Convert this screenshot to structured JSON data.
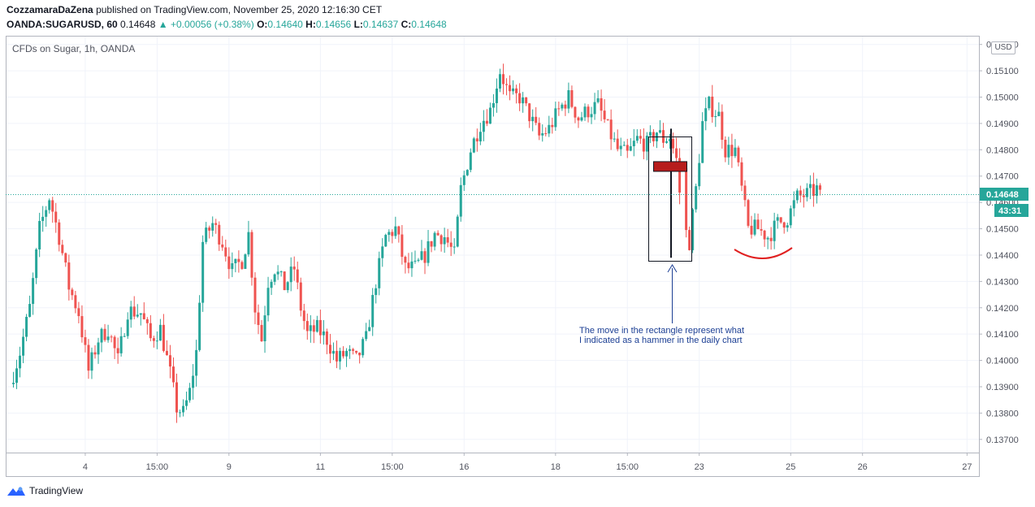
{
  "header": {
    "author": "CozzamaraDaZena",
    "published_text": "published on TradingView.com, November 25, 2020 12:16:30 CET",
    "symbol": "OANDA:SUGARUSD, 60",
    "last": "0.14648",
    "change": "▲ +0.00056 (+0.38%)",
    "o_label": "O:",
    "o_value": "0.14640",
    "h_label": "H:",
    "h_value": "0.14656",
    "l_label": "L:",
    "l_value": "0.14637",
    "c_label": "C:",
    "c_value": "0.14648"
  },
  "legend": {
    "title": "CFDs on Sugar, 1h, OANDA"
  },
  "currency_label": "USD",
  "price_tag": {
    "value": "0.14648",
    "countdown": "43:31"
  },
  "annotation": {
    "line1": "The move in the rectangle represent what",
    "line2": "I indicated as a hammer in the daily chart"
  },
  "footer": {
    "brand": "TradingView"
  },
  "colors": {
    "up": "#26a69a",
    "down": "#ef5350",
    "annotation_text": "#1c3f94",
    "arc": "#e02020",
    "hammer_body": "#b71c1c"
  },
  "chart_data": {
    "type": "candlestick",
    "title": "CFDs on Sugar, 1h, OANDA",
    "ylim": [
      0.1365,
      0.1523
    ],
    "y_ticks": [
      "0.13700",
      "0.13800",
      "0.13900",
      "0.14000",
      "0.14100",
      "0.14200",
      "0.14300",
      "0.14400",
      "0.14500",
      "0.14600",
      "0.14700",
      "0.14800",
      "0.14900",
      "0.15000",
      "0.15100",
      "0.15200"
    ],
    "x_ticks": [
      {
        "label": "4",
        "i": 22
      },
      {
        "label": "15:00",
        "i": 44
      },
      {
        "label": "9",
        "i": 66
      },
      {
        "label": "11",
        "i": 94
      },
      {
        "label": "15:00",
        "i": 116
      },
      {
        "label": "16",
        "i": 138
      },
      {
        "label": "18",
        "i": 166
      },
      {
        "label": "15:00",
        "i": 188
      },
      {
        "label": "23",
        "i": 210
      },
      {
        "label": "25",
        "i": 238
      },
      {
        "label": "26",
        "i": 260
      },
      {
        "label": "27",
        "i": 292
      }
    ],
    "anchors": [
      [
        0,
        0.1391
      ],
      [
        3,
        0.1403
      ],
      [
        6,
        0.142
      ],
      [
        9,
        0.145
      ],
      [
        12,
        0.1462
      ],
      [
        15,
        0.1447
      ],
      [
        18,
        0.1428
      ],
      [
        21,
        0.1418
      ],
      [
        24,
        0.1396
      ],
      [
        27,
        0.1408
      ],
      [
        30,
        0.1412
      ],
      [
        33,
        0.14
      ],
      [
        36,
        0.1419
      ],
      [
        40,
        0.1418
      ],
      [
        43,
        0.1408
      ],
      [
        46,
        0.1412
      ],
      [
        49,
        0.1395
      ],
      [
        51,
        0.1382
      ],
      [
        53,
        0.138
      ],
      [
        55,
        0.1388
      ],
      [
        57,
        0.1403
      ],
      [
        59,
        0.1445
      ],
      [
        62,
        0.1452
      ],
      [
        65,
        0.1445
      ],
      [
        68,
        0.1434
      ],
      [
        71,
        0.1438
      ],
      [
        73,
        0.1448
      ],
      [
        75,
        0.142
      ],
      [
        77,
        0.1408
      ],
      [
        79,
        0.143
      ],
      [
        81,
        0.1435
      ],
      [
        84,
        0.1428
      ],
      [
        87,
        0.1435
      ],
      [
        89,
        0.142
      ],
      [
        91,
        0.141
      ],
      [
        94,
        0.1412
      ],
      [
        97,
        0.1408
      ],
      [
        100,
        0.14
      ],
      [
        103,
        0.1403
      ],
      [
        106,
        0.14
      ],
      [
        109,
        0.1408
      ],
      [
        112,
        0.143
      ],
      [
        115,
        0.1447
      ],
      [
        118,
        0.145
      ],
      [
        121,
        0.1435
      ],
      [
        124,
        0.1435
      ],
      [
        127,
        0.144
      ],
      [
        130,
        0.1448
      ],
      [
        133,
        0.1447
      ],
      [
        136,
        0.144
      ],
      [
        138,
        0.1465
      ],
      [
        141,
        0.148
      ],
      [
        144,
        0.149
      ],
      [
        147,
        0.1495
      ],
      [
        150,
        0.151
      ],
      [
        153,
        0.15
      ],
      [
        156,
        0.15
      ],
      [
        159,
        0.1493
      ],
      [
        162,
        0.1485
      ],
      [
        165,
        0.1488
      ],
      [
        168,
        0.1495
      ],
      [
        171,
        0.15
      ],
      [
        174,
        0.1492
      ],
      [
        177,
        0.1495
      ],
      [
        180,
        0.1497
      ],
      [
        183,
        0.1488
      ],
      [
        186,
        0.148
      ],
      [
        189,
        0.1478
      ],
      [
        192,
        0.1484
      ],
      [
        195,
        0.1482
      ],
      [
        198,
        0.1487
      ],
      [
        200,
        0.1484
      ],
      [
        202,
        0.1485
      ],
      [
        204,
        0.1476
      ],
      [
        206,
        0.1452
      ],
      [
        208,
        0.1445
      ],
      [
        210,
        0.1465
      ],
      [
        212,
        0.149
      ],
      [
        214,
        0.1497
      ],
      [
        217,
        0.1493
      ],
      [
        219,
        0.148
      ],
      [
        222,
        0.148
      ],
      [
        224,
        0.1465
      ],
      [
        226,
        0.145
      ],
      [
        229,
        0.145
      ],
      [
        232,
        0.1447
      ],
      [
        235,
        0.1452
      ],
      [
        238,
        0.1454
      ],
      [
        241,
        0.1462
      ],
      [
        244,
        0.1463
      ],
      [
        247,
        0.1465
      ]
    ],
    "hammer_candle": {
      "i": 205,
      "open": 0.14755,
      "close": 0.1473,
      "high": 0.1488,
      "low": 0.1439
    }
  }
}
